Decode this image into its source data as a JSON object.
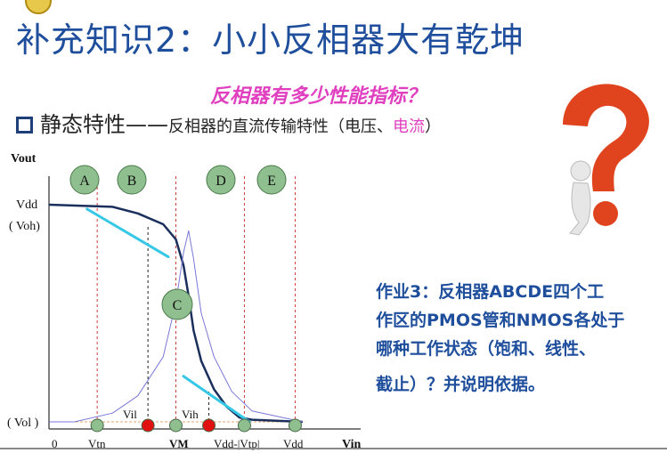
{
  "slide": {
    "title": "补充知识2：小小反相器大有乾坤",
    "subtitle": "反相器有多少性能指标？",
    "bullet_main": "静态特性——",
    "bullet_detail": "反相器的直流传输特性（电压、",
    "bullet_current": "电流",
    "bullet_close": "）"
  },
  "chart_data": {
    "type": "line",
    "title": "",
    "xlabel": "Vin",
    "ylabel": "Vout",
    "y_labels": [
      "Vdd",
      "( Voh)",
      "( Vol )"
    ],
    "x_ticks": [
      "0",
      "Vtn",
      "VM",
      "Vdd-|Vtp|",
      "Vdd"
    ],
    "regions": [
      "A",
      "B",
      "C",
      "D",
      "E"
    ],
    "points": [
      "Vil",
      "Vih"
    ],
    "series": [
      {
        "type": "vtc",
        "color": "#1a2f5c",
        "x": [
          0,
          0.25,
          0.35,
          0.45,
          0.5,
          0.53,
          0.55,
          0.57,
          0.6,
          0.65,
          0.7,
          0.75,
          0.8,
          1.0
        ],
        "y": [
          1.0,
          0.99,
          0.96,
          0.91,
          0.84,
          0.72,
          0.58,
          0.42,
          0.28,
          0.15,
          0.07,
          0.02,
          0.01,
          0.0
        ]
      },
      {
        "type": "current",
        "color": "#7a78d8",
        "x": [
          0,
          0.1,
          0.25,
          0.35,
          0.45,
          0.5,
          0.53,
          0.55,
          0.57,
          0.6,
          0.65,
          0.72,
          0.8,
          1.0
        ],
        "y": [
          0,
          0.0,
          0.04,
          0.12,
          0.3,
          0.55,
          0.78,
          0.88,
          0.75,
          0.5,
          0.3,
          0.14,
          0.05,
          0.0
        ]
      }
    ],
    "tangents": [
      {
        "x": [
          0.15,
          0.47
        ],
        "y": [
          0.98,
          0.76
        ]
      },
      {
        "x": [
          0.53,
          0.79
        ],
        "y": [
          0.21,
          0.0
        ]
      }
    ],
    "colors": {
      "vtc": "#1a2f5c",
      "tangent": "#35c8e6",
      "guide": "#d33a3a",
      "marker_green": "#8fbf8f",
      "marker_red": "#e01010"
    }
  },
  "homework": {
    "line1": "作业3：反相器ABCDE四个工",
    "line2": "作区的PMOS管和NMOS各处于",
    "line3": "哪种工作状态（饱和、线性、",
    "line4": "截止）？并说明依据。"
  }
}
